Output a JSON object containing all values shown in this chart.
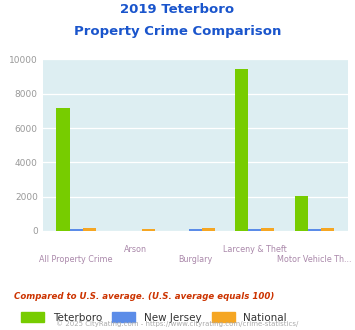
{
  "title_line1": "2019 Teterboro",
  "title_line2": "Property Crime Comparison",
  "categories_top": [
    "",
    "Arson",
    "",
    "Larceny & Theft",
    ""
  ],
  "categories_bottom": [
    "All Property Crime",
    "",
    "Burglary",
    "",
    "Motor Vehicle Th..."
  ],
  "teterboro": [
    7150,
    0,
    0,
    9450,
    2050
  ],
  "new_jersey": [
    130,
    0,
    130,
    130,
    130
  ],
  "national": [
    150,
    130,
    150,
    150,
    150
  ],
  "colors": {
    "teterboro": "#77cc00",
    "new_jersey": "#5b8ce8",
    "national": "#f5a623"
  },
  "ylim": [
    0,
    10000
  ],
  "yticks": [
    0,
    2000,
    4000,
    6000,
    8000,
    10000
  ],
  "background_color": "#ddeef2",
  "title_color": "#1a55cc",
  "axis_label_color_top": "#aa88aa",
  "axis_label_color_bottom": "#aa88aa",
  "ytick_color": "#999999",
  "legend_labels": [
    "Teterboro",
    "New Jersey",
    "National"
  ],
  "footnote1": "Compared to U.S. average. (U.S. average equals 100)",
  "footnote2": "© 2025 CityRating.com - https://www.cityrating.com/crime-statistics/",
  "footnote1_color": "#cc3300",
  "footnote2_color": "#aaaaaa"
}
